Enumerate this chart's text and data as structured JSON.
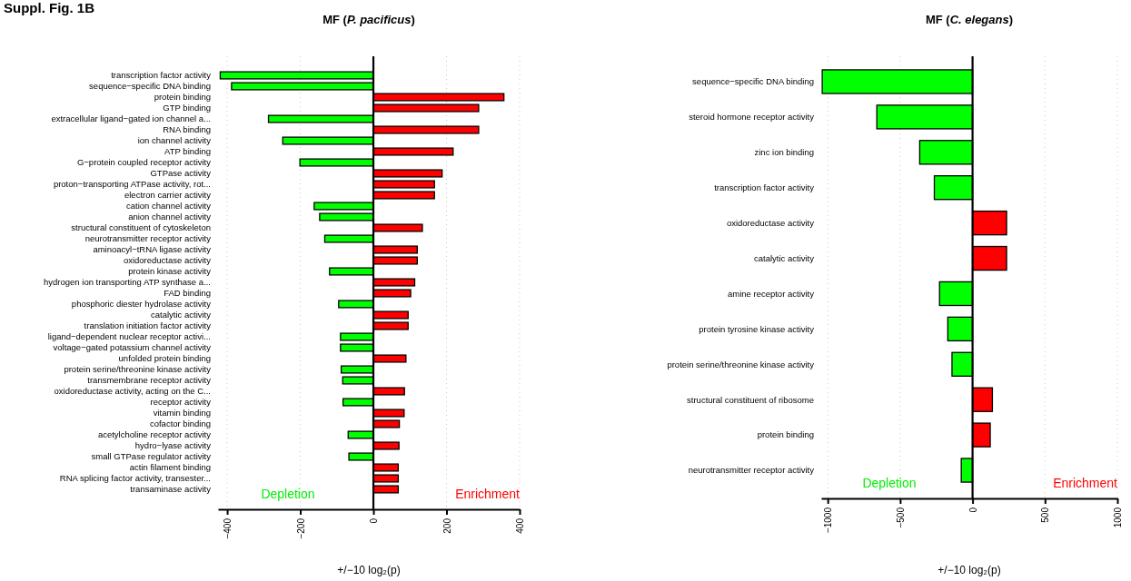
{
  "chart_data": [
    {
      "type": "bar",
      "orientation": "horizontal",
      "title": "MF (P. pacificus)",
      "xlabel": "+/−10 log₂(p)",
      "annotations": [
        "Suppl. Fig. 1B",
        "Depletion",
        "Enrichment"
      ],
      "categories": [
        "transcription factor activity",
        "sequence−specific DNA binding",
        "protein binding",
        "GTP binding",
        "extracellular ligand−gated ion channel a...",
        "RNA binding",
        "ion channel activity",
        "ATP binding",
        "G−protein coupled receptor activity",
        "GTPase activity",
        "proton−transporting ATPase activity, rot...",
        "electron carrier activity",
        "cation channel activity",
        "anion channel activity",
        "structural constituent of cytoskeleton",
        "neurotransmitter receptor activity",
        "aminoacyl−tRNA ligase activity",
        "oxidoreductase activity",
        "protein kinase activity",
        "hydrogen ion transporting ATP synthase a...",
        "FAD binding",
        "phosphoric diester hydrolase activity",
        "catalytic activity",
        "translation initiation factor activity",
        "ligand−dependent nuclear receptor activi...",
        "voltage−gated potassium channel activity",
        "unfolded protein binding",
        "protein serine/threonine kinase activity",
        "transmembrane receptor activity",
        "oxidoreductase activity, acting on the C...",
        "receptor activity",
        "vitamin binding",
        "cofactor binding",
        "acetylcholine receptor activity",
        "hydro−lyase activity",
        "small GTPase regulator activity",
        "actin filament binding",
        "RNA splicing factor activity, transester...",
        "transaminase activity"
      ],
      "values": [
        -419,
        -388,
        357,
        288,
        -287,
        288,
        -248,
        218,
        -201,
        188,
        167,
        167,
        -162,
        -147,
        134,
        -133,
        120,
        120,
        -120,
        113,
        102,
        -95,
        95,
        95,
        -90,
        -90,
        89,
        -88,
        -84,
        85,
        -83,
        84,
        71,
        -69,
        70,
        -67,
        68,
        68,
        68
      ],
      "colors": [
        "#00ff00",
        "#00ff00",
        "#ff0000",
        "#ff0000",
        "#00ff00",
        "#ff0000",
        "#00ff00",
        "#ff0000",
        "#00ff00",
        "#ff0000",
        "#ff0000",
        "#ff0000",
        "#00ff00",
        "#00ff00",
        "#ff0000",
        "#00ff00",
        "#ff0000",
        "#ff0000",
        "#00ff00",
        "#ff0000",
        "#ff0000",
        "#00ff00",
        "#ff0000",
        "#ff0000",
        "#00ff00",
        "#00ff00",
        "#ff0000",
        "#00ff00",
        "#00ff00",
        "#ff0000",
        "#00ff00",
        "#ff0000",
        "#ff0000",
        "#00ff00",
        "#ff0000",
        "#00ff00",
        "#ff0000",
        "#ff0000",
        "#ff0000"
      ],
      "xlim": [
        -425,
        400
      ],
      "xticks": [
        {
          "value": -400,
          "label": "−400"
        },
        {
          "value": -200,
          "label": "−200"
        },
        0,
        200,
        400
      ],
      "grid": "x",
      "ref_lines": [
        {
          "axis": "x",
          "value": 0,
          "color": "#000000"
        }
      ]
    },
    {
      "type": "bar",
      "orientation": "horizontal",
      "title": "MF (C. elegans)",
      "xlabel": "+/−10 log₂(p)",
      "annotations": [
        "Depletion",
        "Enrichment"
      ],
      "categories": [
        "sequence−specific DNA binding",
        "steroid hormone receptor activity",
        "zinc ion binding",
        "transcription factor activity",
        "oxidoreductase activity",
        "catalytic activity",
        "amine receptor activity",
        "protein tyrosine kinase activity",
        "protein serine/threonine kinase activity",
        "structural constituent of ribosome",
        "protein binding",
        "neurotransmitter receptor activity"
      ],
      "values": [
        -1038,
        -661,
        -365,
        -264,
        235,
        235,
        -228,
        -171,
        -142,
        137,
        122,
        -78
      ],
      "colors": [
        "#00ff00",
        "#00ff00",
        "#00ff00",
        "#00ff00",
        "#ff0000",
        "#ff0000",
        "#00ff00",
        "#00ff00",
        "#00ff00",
        "#ff0000",
        "#ff0000",
        "#00ff00"
      ],
      "xlim": [
        -1045,
        1000
      ],
      "xticks": [
        {
          "value": -1000,
          "label": "−1000"
        },
        {
          "value": -500,
          "label": "−500"
        },
        0,
        500,
        1000
      ],
      "grid": "x",
      "ref_lines": [
        {
          "axis": "x",
          "value": 0,
          "color": "#000000"
        }
      ]
    }
  ]
}
